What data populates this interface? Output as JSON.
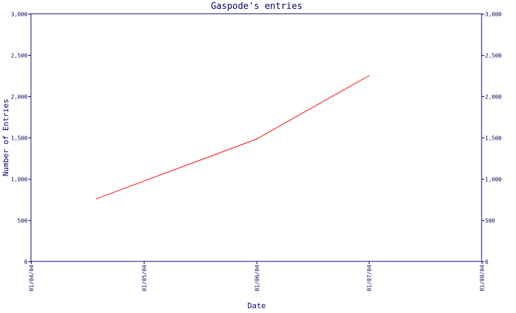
{
  "chart_data": {
    "type": "line",
    "title": "Gaspode's entries",
    "xlabel": "Date",
    "ylabel": "Number of Entries",
    "x_type": "date",
    "xlim": [
      "2004-01-04",
      "2004-01-08"
    ],
    "x_ticks": [
      "01/04/04",
      "01/05/04",
      "01/06/04",
      "01/07/04",
      "01/08/04"
    ],
    "ylim": [
      0,
      3000
    ],
    "y_ticks": [
      0,
      500,
      1000,
      1500,
      2000,
      2500,
      3000
    ],
    "y_tick_labels": [
      "0",
      "500",
      "1,000",
      "1,500",
      "2,000",
      "2,500",
      "3,000"
    ],
    "secondary_y_axis": true,
    "grid": false,
    "series": [
      {
        "color": "#ff0000",
        "points": [
          {
            "x": "2004-01-04 14:00",
            "y": 760
          },
          {
            "x": "2004-01-06 00:00",
            "y": 1480
          },
          {
            "x": "2004-01-07 00:00",
            "y": 2250
          }
        ]
      }
    ],
    "axis_color": "#000066"
  }
}
